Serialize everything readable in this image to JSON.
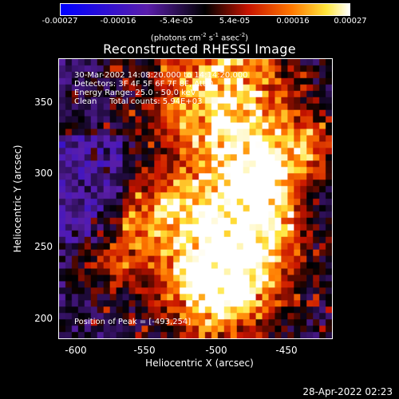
{
  "colorbar": {
    "ticks": [
      "-0.00027",
      "-0.00016",
      "-5.4e-05",
      "5.4e-05",
      "0.00016",
      "0.00027"
    ],
    "units_prefix": "(photons cm",
    "units_exp1": "-2",
    "units_mid": " s",
    "units_exp2": "-1",
    "units_mid2": " asec",
    "units_exp3": "-2",
    "units_suffix": ")"
  },
  "title": "Reconstructed RHESSI Image",
  "info": {
    "time": "30-Mar-2002 14:08:20.000 to 14:14:20.000",
    "detectors": "Detectors: 3F 4F 5F 6F 7F 8F, Att 0",
    "energy": "Energy Range: 25.0 - 50.0 keV",
    "clean": "Clean     Total counts: 5.94E+03",
    "peak": "Position of Peak = [-493,254]"
  },
  "axes": {
    "xlabel": "Heliocentric X (arcsec)",
    "ylabel": "Heliocentric Y (arcsec)",
    "xticks": [
      "-600",
      "-550",
      "-500",
      "-450"
    ],
    "yticks": [
      "350",
      "300",
      "250",
      "200"
    ],
    "xlim": [
      -612,
      -418
    ],
    "ylim": [
      186,
      384
    ]
  },
  "timestamp": "28-Apr-2022 02:23"
}
